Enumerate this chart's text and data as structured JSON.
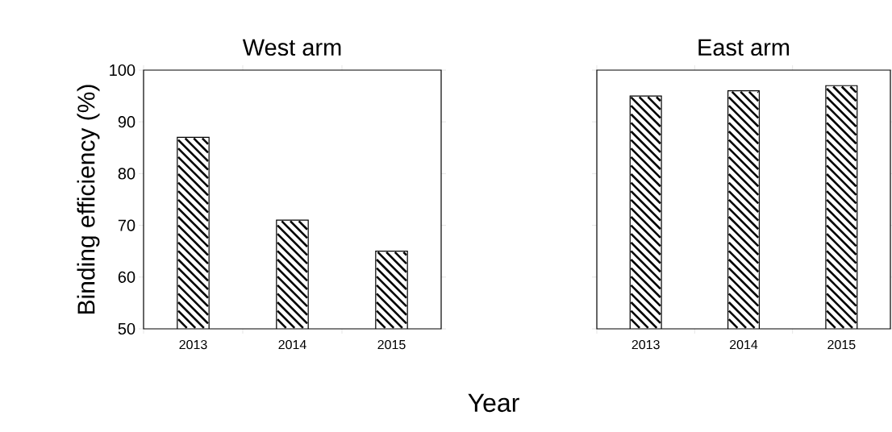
{
  "chart_data": [
    {
      "type": "bar",
      "title": "West arm",
      "ylabel": "Binding efficiency (%)",
      "xlabel": "Year",
      "categories": [
        "2013",
        "2014",
        "2015"
      ],
      "values": [
        87,
        71,
        65
      ],
      "color": "#ffffff",
      "ylim": [
        50,
        100
      ],
      "yticks": [
        50,
        60,
        70,
        80,
        90,
        100
      ]
    },
    {
      "type": "bar",
      "title": "East arm",
      "categories": [
        "2013",
        "2014",
        "2015"
      ],
      "values": [
        95,
        96,
        97
      ],
      "color": "#ffffff",
      "ylim": [
        50,
        100
      ],
      "yticks": [
        50,
        60,
        70,
        80,
        90,
        100
      ],
      "tick_labels": "x"
    }
  ]
}
